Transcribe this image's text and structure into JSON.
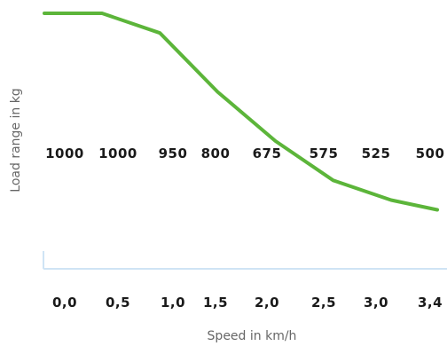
{
  "chart_data": {
    "type": "line",
    "title": "",
    "xlabel": "Speed in km/h",
    "ylabel": "Load range in kg",
    "categories": [
      "0,0",
      "0,5",
      "1,0",
      "1,5",
      "2,0",
      "2,5",
      "3,0",
      "3,4"
    ],
    "x": [
      0.0,
      0.5,
      1.0,
      1.5,
      2.0,
      2.5,
      3.0,
      3.4
    ],
    "series": [
      {
        "values": [
          1000,
          1000,
          950,
          800,
          675,
          575,
          525,
          500
        ],
        "labels": [
          "1000",
          "1000",
          "950",
          "800",
          "675",
          "575",
          "525",
          "500"
        ],
        "color": "#5cb53a"
      }
    ],
    "xlim": [
      0.0,
      3.4
    ],
    "ylim": [
      350,
      1000
    ],
    "grid": false,
    "legend": "none",
    "axis_color": "#cfe4f5"
  }
}
